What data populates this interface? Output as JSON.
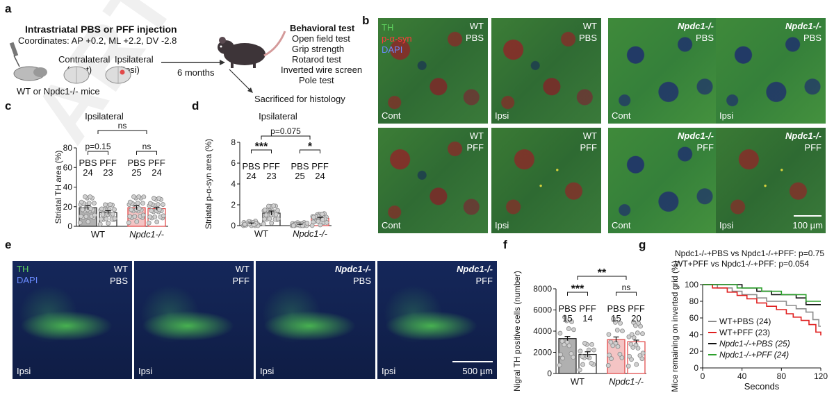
{
  "watermark": "ARTICLE IN",
  "panel_a": {
    "label": "a",
    "title": "Intrastriatal PBS or PFF injection",
    "coordinates": "Coordinates: AP +0.2, ML +2.2, DV -2.8",
    "contralateral": "Contralateral",
    "contralateral_abbr": "(Cont)",
    "ipsilateral": "Ipsilateral",
    "ipsilateral_abbr": "(Ipsi)",
    "mice": "WT or Npdc1-/- mice",
    "duration": "6 months",
    "behavior_title": "Behavioral test",
    "tests": [
      "Open field test",
      "Grip strength",
      "Rotarod test",
      "Inverted wire screen",
      "Pole test"
    ],
    "sacrificed": "Sacrificed for histology"
  },
  "panel_b": {
    "label": "b",
    "legend": {
      "th": "TH",
      "psyn": "p-α-syn",
      "dapi": "DAPI"
    },
    "scale": "100 µm",
    "tiles": [
      {
        "genotype": "WT",
        "treatment": "PBS",
        "side": "Cont"
      },
      {
        "genotype": "WT",
        "treatment": "PBS",
        "side": "Ipsi"
      },
      {
        "genotype": "Npdc1-/-",
        "treatment": "PBS",
        "side": "Cont"
      },
      {
        "genotype": "Npdc1-/-",
        "treatment": "PBS",
        "side": "Ipsi"
      },
      {
        "genotype": "WT",
        "treatment": "PFF",
        "side": "Cont"
      },
      {
        "genotype": "WT",
        "treatment": "PFF",
        "side": "Ipsi"
      },
      {
        "genotype": "Npdc1-/-",
        "treatment": "PFF",
        "side": "Cont"
      },
      {
        "genotype": "Npdc1-/-",
        "treatment": "PFF",
        "side": "Ipsi"
      }
    ]
  },
  "panel_e": {
    "label": "e",
    "legend": {
      "th": "TH",
      "dapi": "DAPI"
    },
    "scale": "500 µm",
    "tiles": [
      {
        "genotype": "WT",
        "treatment": "PBS",
        "side": "Ipsi"
      },
      {
        "genotype": "WT",
        "treatment": "PFF",
        "side": "Ipsi"
      },
      {
        "genotype": "Npdc1-/-",
        "treatment": "PBS",
        "side": "Ipsi"
      },
      {
        "genotype": "Npdc1-/-",
        "treatment": "PFF",
        "side": "Ipsi"
      }
    ]
  },
  "chart_data": [
    {
      "id": "c",
      "type": "bar",
      "label": "c",
      "title": "Ipsilateral",
      "ylabel": "Striatal TH area (%)",
      "ylim": [
        0,
        80
      ],
      "yticks": [
        0,
        20,
        40,
        60,
        80
      ],
      "groups": [
        "WT",
        "Npdc1-/-"
      ],
      "bar_labels": [
        "PBS",
        "PFF",
        "PBS",
        "PFF"
      ],
      "n": [
        "24",
        "23",
        "25",
        "24"
      ],
      "values": [
        19,
        14,
        19,
        18
      ],
      "sem": [
        2,
        2,
        2,
        1.5
      ],
      "significance": [
        {
          "text": "p=0.15",
          "between": [
            0,
            1
          ]
        },
        {
          "text": "ns",
          "between": [
            2,
            3
          ]
        },
        {
          "text": "ns",
          "between": [
            "pff_wt",
            "pff_ko"
          ]
        }
      ],
      "bar_colors": [
        "#b0b0b0",
        "#ffffff",
        "#f4c4c4",
        "#ffffff"
      ],
      "edge_colors": [
        "#222222",
        "#222222",
        "#e04040",
        "#e04040"
      ]
    },
    {
      "id": "d",
      "type": "bar",
      "label": "d",
      "title": "Ipsilateral",
      "ylabel": "Striatal p-α-syn area (%)",
      "ylim": [
        0,
        8
      ],
      "yticks": [
        0,
        2,
        4,
        6,
        8
      ],
      "groups": [
        "WT",
        "Npdc1-/-"
      ],
      "bar_labels": [
        "PBS",
        "PFF",
        "PBS",
        "PFF"
      ],
      "n": [
        "24",
        "23",
        "25",
        "24"
      ],
      "values": [
        0.2,
        1.2,
        0.1,
        0.7
      ],
      "sem": [
        0.05,
        0.2,
        0.03,
        0.1
      ],
      "significance": [
        {
          "text": "***",
          "between": [
            0,
            1
          ]
        },
        {
          "text": "*",
          "between": [
            2,
            3
          ]
        },
        {
          "text": "p=0.075",
          "between": [
            "pff_wt",
            "pff_ko"
          ]
        }
      ],
      "bar_colors": [
        "#b0b0b0",
        "#ffffff",
        "#f4c4c4",
        "#ffffff"
      ],
      "edge_colors": [
        "#222222",
        "#222222",
        "#e04040",
        "#e04040"
      ]
    },
    {
      "id": "f",
      "type": "bar",
      "label": "f",
      "ylabel": "Nigral TH positive cells (number)",
      "ylim": [
        0,
        8000
      ],
      "yticks": [
        0,
        2000,
        4000,
        6000,
        8000
      ],
      "groups": [
        "WT",
        "Npdc1-/-"
      ],
      "bar_labels": [
        "PBS",
        "PFF",
        "PBS",
        "PFF"
      ],
      "n": [
        "15",
        "14",
        "15",
        "20"
      ],
      "values": [
        3300,
        1800,
        3200,
        3000
      ],
      "sem": [
        200,
        250,
        250,
        150
      ],
      "significance": [
        {
          "text": "***",
          "between": [
            0,
            1
          ]
        },
        {
          "text": "ns",
          "between": [
            2,
            3
          ]
        },
        {
          "text": "**",
          "between": [
            "pff_wt",
            "pff_ko"
          ]
        }
      ],
      "bar_colors": [
        "#b0b0b0",
        "#ffffff",
        "#f4c4c4",
        "#ffffff"
      ],
      "edge_colors": [
        "#222222",
        "#222222",
        "#e04040",
        "#e04040"
      ]
    },
    {
      "id": "g",
      "type": "line",
      "label": "g",
      "annotations": [
        "Npdc1-/-+PBS vs Npdc1-/-+PFF: p=0.75",
        "WT+PFF vs Npdc1-/-+PFF: p=0.054"
      ],
      "xlabel": "Seconds",
      "ylabel": "Mice remaining on inverted grid (%)",
      "xlim": [
        0,
        120
      ],
      "ylim": [
        0,
        100
      ],
      "xticks": [
        0,
        40,
        80,
        120
      ],
      "yticks": [
        0,
        20,
        40,
        60,
        80,
        100
      ],
      "series": [
        {
          "name": "WT+PBS (24)",
          "color": "#8a8a8a",
          "x": [
            0,
            15,
            30,
            40,
            55,
            65,
            75,
            85,
            95,
            105,
            112,
            118,
            120
          ],
          "y": [
            100,
            96,
            92,
            88,
            84,
            80,
            80,
            75,
            71,
            67,
            58,
            50,
            50
          ]
        },
        {
          "name": "WT+PFF (23)",
          "color": "#e02020",
          "x": [
            0,
            10,
            25,
            35,
            45,
            55,
            65,
            75,
            85,
            92,
            100,
            108,
            115,
            120
          ],
          "y": [
            100,
            96,
            91,
            87,
            83,
            78,
            74,
            70,
            65,
            61,
            57,
            52,
            43,
            39
          ]
        },
        {
          "name": "Npdc1-/-+PBS (25)",
          "color": "#111111",
          "x": [
            0,
            40,
            55,
            70,
            85,
            95,
            105,
            120
          ],
          "y": [
            100,
            96,
            92,
            88,
            88,
            84,
            76,
            76
          ]
        },
        {
          "name": "Npdc1-/-+PFF (24)",
          "color": "#2ca02c",
          "x": [
            0,
            35,
            60,
            80,
            95,
            105,
            120
          ],
          "y": [
            100,
            96,
            92,
            88,
            88,
            80,
            80
          ]
        }
      ]
    }
  ]
}
